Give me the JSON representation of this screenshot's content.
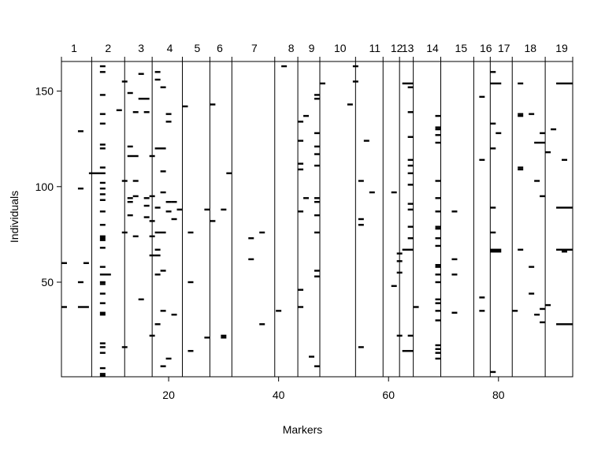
{
  "chart_data": {
    "type": "heatmap",
    "xlabel": "Markers",
    "ylabel": "Individuals",
    "xlim": [
      0.5,
      93.5
    ],
    "ylim": [
      0.5,
      165.5
    ],
    "x_ticks": [
      20,
      40,
      60,
      80
    ],
    "y_ticks": [
      50,
      100,
      150
    ],
    "chromosome_labels": [
      "1",
      "2",
      "3",
      "4",
      "5",
      "6",
      "7",
      "8",
      "9",
      "10",
      "11",
      "12",
      "13",
      "14",
      "15",
      "16",
      "17",
      "18",
      "19"
    ],
    "chromosome_centers": [
      2.8,
      9.0,
      15.0,
      20.2,
      25.2,
      29.3,
      35.6,
      42.3,
      46.0,
      51.2,
      57.5,
      61.5,
      63.5,
      68.0,
      73.2,
      77.7,
      81.0,
      85.8,
      91.5
    ],
    "chromosome_boundaries": [
      6.0,
      12.0,
      17.0,
      22.5,
      27.5,
      31.5,
      39.3,
      43.5,
      47.5,
      54.0,
      59.0,
      62.0,
      64.5,
      69.5,
      75.5,
      78.5,
      82.5,
      88.5
    ],
    "fill_color": "#000000",
    "segments": [
      [
        0.5,
        1.5,
        60
      ],
      [
        0.5,
        1.5,
        37
      ],
      [
        3.5,
        4.5,
        129
      ],
      [
        3.5,
        4.5,
        99
      ],
      [
        3.5,
        4.5,
        50
      ],
      [
        3.5,
        5.5,
        37
      ],
      [
        4.5,
        5.5,
        60
      ],
      [
        5.5,
        8.5,
        107
      ],
      [
        7.5,
        8.5,
        163
      ],
      [
        7.5,
        8.5,
        160
      ],
      [
        7.5,
        8.5,
        148
      ],
      [
        7.5,
        8.5,
        138
      ],
      [
        7.5,
        8.5,
        133
      ],
      [
        7.5,
        8.5,
        122
      ],
      [
        7.5,
        8.5,
        120
      ],
      [
        7.5,
        8.5,
        110
      ],
      [
        7.5,
        8.5,
        102
      ],
      [
        7.5,
        8.5,
        99
      ],
      [
        7.5,
        8.5,
        96
      ],
      [
        7.5,
        8.5,
        93
      ],
      [
        7.5,
        8.5,
        87
      ],
      [
        7.5,
        8.5,
        80
      ],
      [
        7.5,
        8.5,
        74
      ],
      [
        7.5,
        8.5,
        73
      ],
      [
        7.5,
        8.5,
        72
      ],
      [
        7.5,
        8.5,
        68
      ],
      [
        7.5,
        8.5,
        58
      ],
      [
        7.5,
        9.5,
        54
      ],
      [
        7.5,
        8.5,
        50
      ],
      [
        7.5,
        8.5,
        49
      ],
      [
        7.5,
        8.5,
        44
      ],
      [
        7.5,
        8.5,
        39
      ],
      [
        7.5,
        8.5,
        34
      ],
      [
        7.5,
        8.5,
        33
      ],
      [
        7.5,
        8.5,
        18
      ],
      [
        7.5,
        8.5,
        16
      ],
      [
        7.5,
        8.5,
        13
      ],
      [
        7.5,
        8.5,
        5
      ],
      [
        7.5,
        8.5,
        2
      ],
      [
        7.5,
        8.5,
        1
      ],
      [
        10.5,
        11.5,
        140
      ],
      [
        11.5,
        12.5,
        155
      ],
      [
        11.5,
        12.5,
        103
      ],
      [
        11.5,
        12.5,
        76
      ],
      [
        11.5,
        12.5,
        16
      ],
      [
        12.5,
        13.5,
        149
      ],
      [
        12.5,
        13.5,
        121
      ],
      [
        12.5,
        14.5,
        116
      ],
      [
        12.5,
        13.5,
        94
      ],
      [
        12.5,
        13.5,
        92
      ],
      [
        12.5,
        13.5,
        85
      ],
      [
        13.5,
        14.5,
        139
      ],
      [
        13.5,
        14.5,
        103
      ],
      [
        13.5,
        14.5,
        95
      ],
      [
        13.5,
        14.5,
        74
      ],
      [
        14.5,
        15.5,
        159
      ],
      [
        14.5,
        16.5,
        146
      ],
      [
        14.5,
        15.5,
        41
      ],
      [
        15.5,
        16.5,
        139
      ],
      [
        15.5,
        16.5,
        94
      ],
      [
        15.5,
        16.5,
        90
      ],
      [
        15.5,
        16.5,
        84
      ],
      [
        16.5,
        17.5,
        116
      ],
      [
        16.5,
        17.5,
        95
      ],
      [
        16.5,
        17.5,
        82
      ],
      [
        16.5,
        17.5,
        74
      ],
      [
        16.5,
        17.5,
        64
      ],
      [
        16.5,
        17.5,
        22
      ],
      [
        17.5,
        18.5,
        160
      ],
      [
        17.5,
        18.5,
        156
      ],
      [
        17.5,
        19.5,
        120
      ],
      [
        17.5,
        18.5,
        89
      ],
      [
        17.5,
        19.5,
        76
      ],
      [
        17.5,
        18.5,
        67
      ],
      [
        17.5,
        18.5,
        64
      ],
      [
        17.5,
        18.5,
        54
      ],
      [
        17.5,
        18.5,
        28
      ],
      [
        18.5,
        19.5,
        152
      ],
      [
        18.5,
        19.5,
        108
      ],
      [
        18.5,
        19.5,
        97
      ],
      [
        18.5,
        19.5,
        56
      ],
      [
        18.5,
        19.5,
        35
      ],
      [
        18.5,
        19.5,
        6
      ],
      [
        19.5,
        20.5,
        138
      ],
      [
        19.5,
        20.5,
        134
      ],
      [
        19.5,
        20.5,
        92
      ],
      [
        19.5,
        20.5,
        87
      ],
      [
        19.5,
        20.5,
        10
      ],
      [
        20.5,
        21.5,
        92
      ],
      [
        20.5,
        21.5,
        83
      ],
      [
        20.5,
        21.5,
        33
      ],
      [
        21.5,
        22.5,
        88
      ],
      [
        22.5,
        23.5,
        142
      ],
      [
        23.5,
        24.5,
        76
      ],
      [
        23.5,
        24.5,
        50
      ],
      [
        23.5,
        24.5,
        14
      ],
      [
        26.5,
        27.5,
        88
      ],
      [
        26.5,
        27.5,
        21
      ],
      [
        27.5,
        28.5,
        143
      ],
      [
        27.5,
        28.5,
        82
      ],
      [
        29.5,
        30.5,
        88
      ],
      [
        29.5,
        30.5,
        22
      ],
      [
        29.5,
        30.5,
        21
      ],
      [
        30.5,
        31.5,
        107
      ],
      [
        34.5,
        35.5,
        73
      ],
      [
        34.5,
        35.5,
        62
      ],
      [
        36.5,
        37.5,
        76
      ],
      [
        36.5,
        37.5,
        28
      ],
      [
        39.5,
        40.5,
        35
      ],
      [
        40.5,
        41.5,
        163
      ],
      [
        43.5,
        44.5,
        134
      ],
      [
        43.5,
        44.5,
        124
      ],
      [
        43.5,
        44.5,
        112
      ],
      [
        43.5,
        44.5,
        109
      ],
      [
        43.5,
        44.5,
        87
      ],
      [
        43.5,
        44.5,
        46
      ],
      [
        43.5,
        44.5,
        37
      ],
      [
        44.5,
        45.5,
        137
      ],
      [
        44.5,
        45.5,
        94
      ],
      [
        45.5,
        46.5,
        11
      ],
      [
        46.5,
        47.5,
        148
      ],
      [
        46.5,
        47.5,
        146
      ],
      [
        46.5,
        47.5,
        128
      ],
      [
        46.5,
        47.5,
        121
      ],
      [
        46.5,
        47.5,
        117
      ],
      [
        46.5,
        47.5,
        111
      ],
      [
        46.5,
        47.5,
        94
      ],
      [
        46.5,
        47.5,
        92
      ],
      [
        46.5,
        47.5,
        85
      ],
      [
        46.5,
        47.5,
        76
      ],
      [
        46.5,
        47.5,
        56
      ],
      [
        46.5,
        47.5,
        53
      ],
      [
        46.5,
        47.5,
        6
      ],
      [
        47.5,
        48.5,
        154
      ],
      [
        53.5,
        54.5,
        163
      ],
      [
        53.5,
        54.5,
        155
      ],
      [
        52.5,
        53.5,
        143
      ],
      [
        54.5,
        55.5,
        103
      ],
      [
        54.5,
        55.5,
        83
      ],
      [
        54.5,
        55.5,
        80
      ],
      [
        54.5,
        55.5,
        16
      ],
      [
        55.5,
        56.5,
        124
      ],
      [
        56.5,
        57.5,
        97
      ],
      [
        60.5,
        61.5,
        97
      ],
      [
        60.5,
        61.5,
        48
      ],
      [
        61.5,
        62.5,
        65
      ],
      [
        61.5,
        62.5,
        61
      ],
      [
        61.5,
        62.5,
        55
      ],
      [
        61.5,
        62.5,
        22
      ],
      [
        62.5,
        64.5,
        154
      ],
      [
        62.5,
        64.5,
        67
      ],
      [
        62.5,
        64.5,
        14
      ],
      [
        63.5,
        64.5,
        152
      ],
      [
        63.5,
        64.5,
        139
      ],
      [
        63.5,
        64.5,
        126
      ],
      [
        63.5,
        64.5,
        114
      ],
      [
        63.5,
        64.5,
        111
      ],
      [
        63.5,
        64.5,
        107
      ],
      [
        63.5,
        64.5,
        101
      ],
      [
        63.5,
        64.5,
        91
      ],
      [
        63.5,
        64.5,
        88
      ],
      [
        63.5,
        64.5,
        79
      ],
      [
        63.5,
        64.5,
        73
      ],
      [
        63.5,
        64.5,
        22
      ],
      [
        64.5,
        65.5,
        37
      ],
      [
        68.5,
        69.5,
        137
      ],
      [
        68.5,
        69.5,
        131
      ],
      [
        68.5,
        69.5,
        130
      ],
      [
        68.5,
        69.5,
        127
      ],
      [
        68.5,
        69.5,
        123
      ],
      [
        68.5,
        69.5,
        103
      ],
      [
        68.5,
        69.5,
        94
      ],
      [
        68.5,
        69.5,
        87
      ],
      [
        68.5,
        69.5,
        79
      ],
      [
        68.5,
        69.5,
        78
      ],
      [
        68.5,
        69.5,
        73
      ],
      [
        68.5,
        69.5,
        69
      ],
      [
        68.5,
        69.5,
        59
      ],
      [
        68.5,
        69.5,
        58
      ],
      [
        68.5,
        69.5,
        54
      ],
      [
        68.5,
        69.5,
        50
      ],
      [
        68.5,
        69.5,
        41
      ],
      [
        68.5,
        69.5,
        39
      ],
      [
        68.5,
        69.5,
        35
      ],
      [
        68.5,
        69.5,
        30
      ],
      [
        68.5,
        69.5,
        17
      ],
      [
        68.5,
        69.5,
        15
      ],
      [
        68.5,
        69.5,
        13
      ],
      [
        68.5,
        69.5,
        10
      ],
      [
        71.5,
        72.5,
        87
      ],
      [
        71.5,
        72.5,
        62
      ],
      [
        71.5,
        72.5,
        54
      ],
      [
        71.5,
        72.5,
        34
      ],
      [
        76.5,
        77.5,
        147
      ],
      [
        76.5,
        77.5,
        114
      ],
      [
        76.5,
        77.5,
        42
      ],
      [
        76.5,
        77.5,
        35
      ],
      [
        78.5,
        79.5,
        160
      ],
      [
        78.5,
        80.5,
        154
      ],
      [
        78.5,
        79.5,
        133
      ],
      [
        78.5,
        79.5,
        120
      ],
      [
        78.5,
        79.5,
        89
      ],
      [
        78.5,
        79.5,
        76
      ],
      [
        78.5,
        80.5,
        67
      ],
      [
        78.5,
        80.5,
        66
      ],
      [
        78.5,
        79.5,
        3
      ],
      [
        79.5,
        80.5,
        128
      ],
      [
        82.5,
        83.5,
        35
      ],
      [
        83.5,
        84.5,
        154
      ],
      [
        83.5,
        84.5,
        138
      ],
      [
        83.5,
        84.5,
        137
      ],
      [
        83.5,
        84.5,
        110
      ],
      [
        83.5,
        84.5,
        109
      ],
      [
        83.5,
        84.5,
        67
      ],
      [
        85.5,
        86.5,
        138
      ],
      [
        85.5,
        86.5,
        58
      ],
      [
        85.5,
        86.5,
        44
      ],
      [
        86.5,
        88.5,
        123
      ],
      [
        86.5,
        87.5,
        103
      ],
      [
        86.5,
        87.5,
        33
      ],
      [
        87.5,
        88.5,
        128
      ],
      [
        87.5,
        88.5,
        95
      ],
      [
        87.5,
        88.5,
        36
      ],
      [
        87.5,
        88.5,
        29
      ],
      [
        88.5,
        89.5,
        118
      ],
      [
        88.5,
        89.5,
        38
      ],
      [
        89.5,
        90.5,
        130
      ],
      [
        90.5,
        93.5,
        154
      ],
      [
        90.5,
        93.5,
        89
      ],
      [
        90.5,
        93.5,
        67
      ],
      [
        90.5,
        93.5,
        28
      ],
      [
        91.5,
        92.5,
        114
      ],
      [
        91.5,
        92.5,
        66
      ]
    ]
  }
}
